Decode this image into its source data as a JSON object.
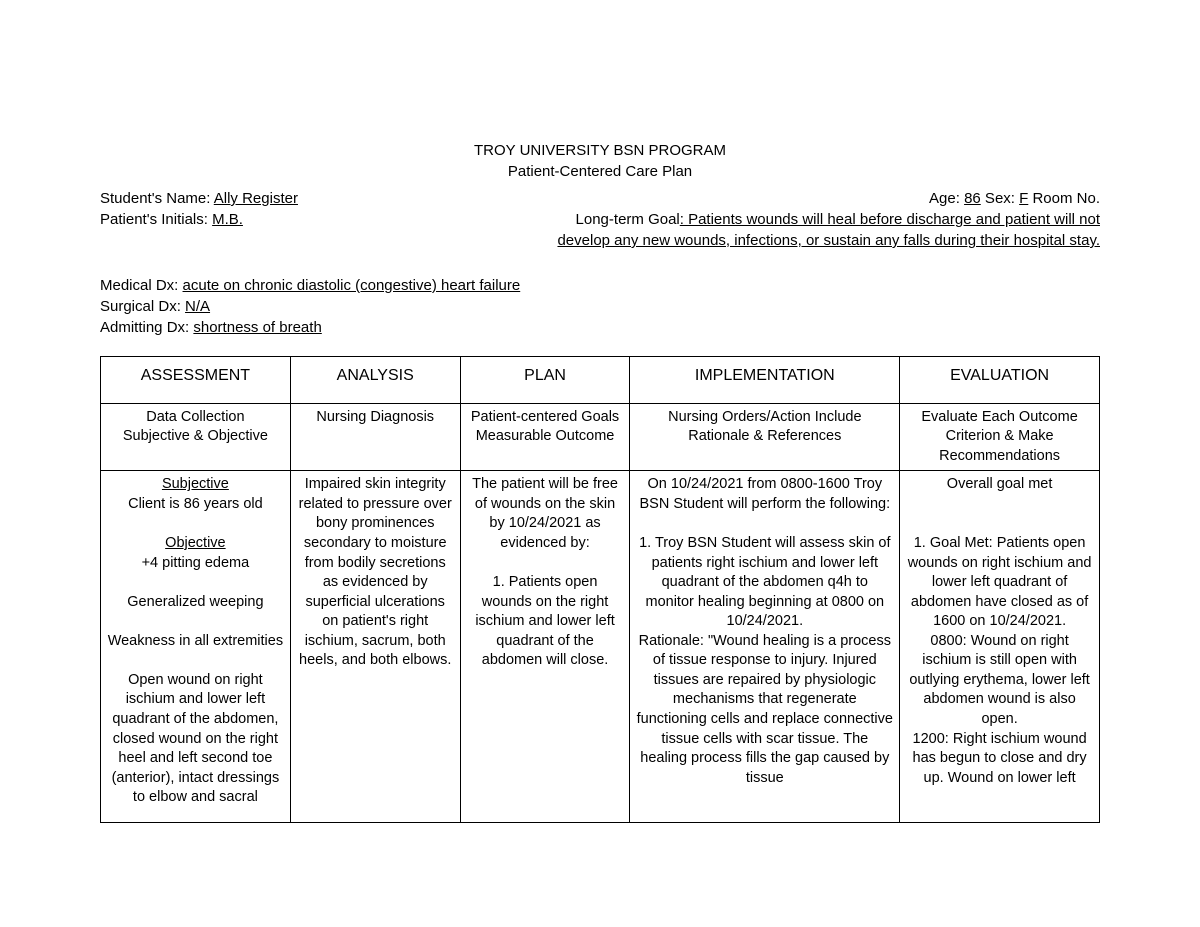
{
  "header": {
    "line1": "TROY UNIVERSITY BSN PROGRAM",
    "line2": "Patient-Centered Care Plan"
  },
  "student": {
    "name_label": "Student's Name: ",
    "name": "Ally Register",
    "initials_label": "Patient's Initials: ",
    "initials": "M.B."
  },
  "patient_meta": {
    "age_label": "Age: ",
    "age": "86",
    "sex_label": " Sex: ",
    "sex": "F",
    "room_label": " Room No.",
    "goal_label": "Long-term Goal",
    "goal_text": ": Patients wounds will heal before discharge and patient will not develop any new wounds, infections, or sustain any falls during their hospital stay."
  },
  "dx": {
    "medical_label": "Medical Dx: ",
    "medical": "acute on chronic diastolic (congestive) heart failure",
    "surgical_label": "Surgical Dx: ",
    "surgical": "N/A",
    "admitting_label": "Admitting Dx: ",
    "admitting": "shortness of breath"
  },
  "table": {
    "headers": [
      "ASSESSMENT",
      "ANALYSIS",
      "PLAN",
      "IMPLEMENTATION",
      "EVALUATION"
    ],
    "subheaders": [
      "Data Collection\nSubjective & Objective",
      "Nursing Diagnosis",
      "Patient-centered Goals\nMeasurable Outcome",
      "Nursing Orders/Action Include\nRationale & References",
      "Evaluate Each Outcome\nCriterion & Make\nRecommendations"
    ],
    "assessment": {
      "subj_h": "Subjective",
      "subj_1": "Client is 86 years old",
      "obj_h": "Objective",
      "obj_1": "+4 pitting edema",
      "obj_2": "Generalized weeping",
      "obj_3": "Weakness in all extremities",
      "obj_4": "Open wound on right ischium and lower left quadrant of the abdomen, closed wound on the right heel and left second toe (anterior), intact dressings to elbow and sacral"
    },
    "analysis": "Impaired skin integrity related to pressure over bony prominences secondary to moisture from bodily secretions as evidenced by superficial ulcerations on patient's right ischium, sacrum, both heels, and both elbows.",
    "plan": {
      "intro": "The patient will be free of wounds on the skin by 10/24/2021 as evidenced by:",
      "p1": "1. Patients open wounds on the right ischium and lower left quadrant of the abdomen will close."
    },
    "implementation": {
      "intro": "On 10/24/2021 from 0800-1600 Troy BSN Student will perform the following:",
      "i1": "1. Troy BSN Student will assess skin of patients right ischium and lower left quadrant of the abdomen q4h to monitor healing beginning at 0800 on 10/24/2021.",
      "rat": "Rationale: \"Wound healing is a process of tissue response to injury. Injured tissues are repaired by physiologic mechanisms that regenerate functioning cells and replace connective tissue cells with scar tissue. The healing process fills the gap caused by tissue"
    },
    "evaluation": {
      "overall": "Overall goal met",
      "e1": "1. Goal Met: Patients open wounds on right ischium and lower left quadrant of abdomen have closed as of 1600 on 10/24/2021.",
      "e2": "0800: Wound on right ischium is still open with outlying erythema, lower left abdomen wound is also open.",
      "e3": "1200: Right ischium wound has begun to close and dry up. Wound on lower left"
    }
  }
}
